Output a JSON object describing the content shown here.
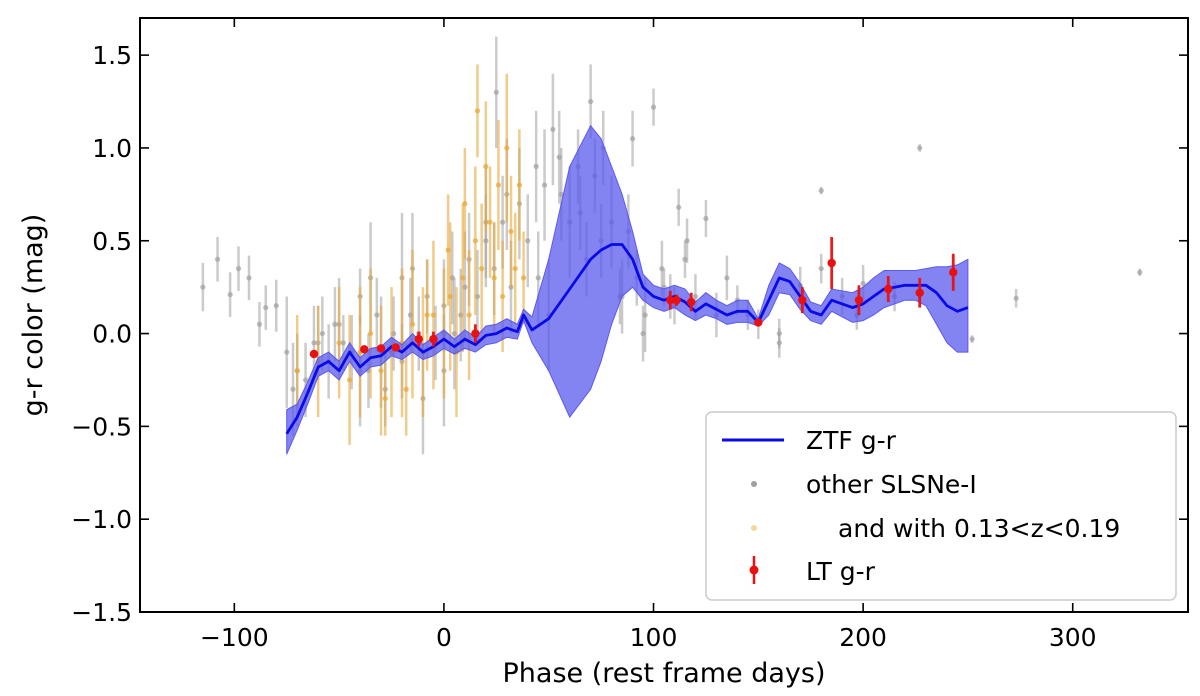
{
  "chart_data": {
    "type": "scatter",
    "xlabel": "Phase (rest frame days)",
    "ylabel": "g-r color (mag)",
    "xlim": [
      -145,
      355
    ],
    "ylim": [
      -1.5,
      1.7
    ],
    "x_ticks": [
      -100,
      0,
      100,
      200,
      300
    ],
    "y_ticks": [
      -1.5,
      -1.0,
      -0.5,
      0.0,
      0.5,
      1.0,
      1.5
    ],
    "x_tick_labels": [
      "−100",
      "0",
      "100",
      "200",
      "300"
    ],
    "y_tick_labels": [
      "−1.5",
      "−1.0",
      "−0.5",
      "0.0",
      "0.5",
      "1.0",
      "1.5"
    ],
    "grid": false,
    "legend_position": "lower-right",
    "colors": {
      "ztf_line": "#0a0ae6",
      "ztf_band": "#5a5aee",
      "other": "#a0a0a0",
      "redshift": "#e8a93a",
      "lt": "#e81010"
    },
    "series": [
      {
        "name": "ZTF g-r",
        "kind": "line-with-band",
        "x": [
          -75,
          -70,
          -65,
          -60,
          -55,
          -50,
          -45,
          -40,
          -35,
          -30,
          -25,
          -20,
          -15,
          -10,
          -5,
          0,
          5,
          10,
          15,
          20,
          25,
          30,
          35,
          38,
          42,
          50,
          60,
          70,
          75,
          80,
          85,
          90,
          95,
          100,
          105,
          110,
          115,
          120,
          125,
          130,
          135,
          140,
          145,
          150,
          155,
          160,
          165,
          170,
          175,
          180,
          185,
          190,
          195,
          200,
          205,
          210,
          215,
          220,
          225,
          230,
          235,
          240,
          245,
          250
        ],
        "y": [
          -0.54,
          -0.45,
          -0.32,
          -0.18,
          -0.15,
          -0.2,
          -0.1,
          -0.18,
          -0.13,
          -0.12,
          -0.07,
          -0.1,
          -0.05,
          -0.1,
          -0.07,
          -0.03,
          -0.07,
          -0.03,
          -0.06,
          -0.01,
          0.0,
          0.03,
          0.01,
          0.1,
          0.02,
          0.08,
          0.24,
          0.4,
          0.45,
          0.48,
          0.48,
          0.4,
          0.25,
          0.2,
          0.18,
          0.2,
          0.17,
          0.12,
          0.16,
          0.13,
          0.1,
          0.12,
          0.12,
          0.06,
          0.18,
          0.3,
          0.28,
          0.2,
          0.12,
          0.1,
          0.18,
          0.16,
          0.14,
          0.16,
          0.2,
          0.24,
          0.25,
          0.26,
          0.26,
          0.26,
          0.22,
          0.15,
          0.12,
          0.14
        ],
        "lower": [
          -0.65,
          -0.52,
          -0.38,
          -0.23,
          -0.2,
          -0.25,
          -0.15,
          -0.23,
          -0.18,
          -0.17,
          -0.12,
          -0.14,
          -0.1,
          -0.14,
          -0.12,
          -0.08,
          -0.11,
          -0.08,
          -0.1,
          -0.06,
          -0.05,
          -0.02,
          -0.03,
          0.07,
          -0.05,
          -0.2,
          -0.45,
          -0.3,
          -0.15,
          0.05,
          0.2,
          0.25,
          0.18,
          0.14,
          0.12,
          0.14,
          0.1,
          0.07,
          0.1,
          0.08,
          0.05,
          0.06,
          0.06,
          0.04,
          0.1,
          0.22,
          0.21,
          0.13,
          0.07,
          0.05,
          0.12,
          0.09,
          0.06,
          0.07,
          0.1,
          0.14,
          0.16,
          0.18,
          0.18,
          0.15,
          0.05,
          -0.05,
          -0.1,
          -0.1
        ],
        "upper": [
          -0.41,
          -0.38,
          -0.26,
          -0.13,
          -0.1,
          -0.15,
          -0.05,
          -0.13,
          -0.08,
          -0.07,
          -0.02,
          -0.06,
          0.0,
          -0.06,
          -0.02,
          0.02,
          -0.03,
          0.02,
          -0.02,
          0.04,
          0.05,
          0.08,
          0.05,
          0.13,
          0.09,
          0.4,
          0.9,
          1.12,
          1.05,
          0.9,
          0.75,
          0.55,
          0.32,
          0.26,
          0.24,
          0.26,
          0.24,
          0.17,
          0.22,
          0.18,
          0.15,
          0.18,
          0.18,
          0.08,
          0.26,
          0.38,
          0.35,
          0.27,
          0.17,
          0.15,
          0.24,
          0.23,
          0.22,
          0.25,
          0.3,
          0.34,
          0.34,
          0.34,
          0.34,
          0.35,
          0.36,
          0.36,
          0.37,
          0.4
        ]
      },
      {
        "name": "other SLSNe-I",
        "kind": "scatter-errorbar",
        "x": [
          -115,
          -108,
          -102,
          -98,
          -93,
          -88,
          -85,
          -80,
          -75,
          -72,
          -70,
          -66,
          -62,
          -58,
          -55,
          -52,
          -48,
          -44,
          -40,
          -36,
          -32,
          -28,
          -24,
          -20,
          -16,
          -12,
          -8,
          -4,
          0,
          4,
          8,
          12,
          16,
          20,
          24,
          28,
          32,
          36,
          40,
          44,
          48,
          52,
          56,
          60,
          64,
          68,
          72,
          76,
          80,
          84,
          88,
          92,
          96,
          100,
          104,
          108,
          112,
          116,
          120,
          125,
          130,
          135,
          140,
          145,
          150,
          160,
          170,
          180,
          190,
          200,
          215,
          227,
          252,
          273,
          332,
          -50,
          -40,
          -30,
          -20,
          -10,
          0,
          10,
          20,
          30,
          45,
          55,
          65,
          75,
          85,
          95,
          105,
          115,
          -60,
          -35,
          -15,
          5,
          25,
          50,
          70,
          90,
          110,
          160,
          180,
          197
        ],
        "y": [
          0.25,
          0.4,
          0.21,
          0.35,
          0.3,
          0.05,
          0.14,
          0.15,
          -0.1,
          -0.3,
          -0.2,
          -0.25,
          -0.05,
          0.0,
          -0.15,
          0.05,
          -0.05,
          -0.1,
          0.2,
          -0.2,
          0.1,
          -0.3,
          0.0,
          -0.15,
          0.1,
          0.0,
          0.2,
          -0.05,
          0.15,
          0.3,
          0.1,
          0.4,
          0.2,
          0.5,
          0.35,
          0.6,
          0.25,
          0.7,
          0.5,
          0.9,
          0.8,
          1.1,
          0.75,
          0.6,
          0.9,
          0.4,
          0.85,
          1.0,
          0.6,
          0.2,
          0.55,
          0.3,
          0.1,
          1.22,
          0.35,
          0.2,
          0.68,
          0.5,
          0.2,
          0.62,
          0.1,
          0.3,
          0.18,
          0.1,
          0.05,
          -0.05,
          0.26,
          0.77,
          0.2,
          0.27,
          0.2,
          1.0,
          -0.03,
          0.19,
          0.33,
          0.05,
          -0.2,
          -0.1,
          0.3,
          -0.35,
          -0.2,
          0.25,
          0.6,
          0.75,
          0.3,
          0.95,
          0.65,
          0.5,
          0.2,
          0.0,
          0.25,
          0.4,
          -0.05,
          0.3,
          0.35,
          0.0,
          1.3,
          0.1,
          1.25,
          1.05,
          0.15,
          0.0,
          0.35,
          0.1
        ],
        "err": [
          0.13,
          0.12,
          0.12,
          0.12,
          0.12,
          0.12,
          0.12,
          0.14,
          0.3,
          0.25,
          0.2,
          0.2,
          0.2,
          0.2,
          0.2,
          0.2,
          0.15,
          0.2,
          0.15,
          0.2,
          0.2,
          0.2,
          0.2,
          0.2,
          0.2,
          0.2,
          0.2,
          0.2,
          0.25,
          0.25,
          0.25,
          0.25,
          0.25,
          0.25,
          0.25,
          0.25,
          0.25,
          0.3,
          0.25,
          0.3,
          0.3,
          0.3,
          0.25,
          0.3,
          0.2,
          0.2,
          0.2,
          0.2,
          0.25,
          0.15,
          0.2,
          0.15,
          0.2,
          0.1,
          0.15,
          0.12,
          0.1,
          0.12,
          0.12,
          0.1,
          0.12,
          0.12,
          0.08,
          0.08,
          0.08,
          0.08,
          0.1,
          0.02,
          0.1,
          0.1,
          0.08,
          0.02,
          0.02,
          0.05,
          0.02,
          0.25,
          0.3,
          0.3,
          0.35,
          0.3,
          0.3,
          0.3,
          0.3,
          0.3,
          0.25,
          0.25,
          0.2,
          0.2,
          0.2,
          0.15,
          0.1,
          0.1,
          0.2,
          0.3,
          0.3,
          0.3,
          0.3,
          0.3,
          0.2,
          0.15,
          0.1,
          0.08,
          0.08,
          0.08
        ]
      },
      {
        "name": "and with 0.13<z<0.19",
        "kind": "scatter-errorbar",
        "x": [
          -70,
          -60,
          -50,
          -45,
          -40,
          -35,
          -30,
          -25,
          -20,
          -15,
          -10,
          -5,
          0,
          3,
          6,
          9,
          12,
          15,
          18,
          20,
          22,
          24,
          26,
          28,
          30,
          32,
          34,
          36,
          38,
          -28,
          -18,
          -8,
          2,
          10,
          16
        ],
        "y": [
          -0.2,
          -0.15,
          -0.05,
          -0.25,
          -0.1,
          0.0,
          -0.2,
          -0.1,
          -0.05,
          0.05,
          -0.1,
          0.1,
          0.0,
          0.2,
          -0.1,
          0.3,
          0.1,
          0.5,
          0.35,
          0.9,
          0.6,
          0.3,
          0.8,
          0.2,
          1.0,
          0.55,
          0.35,
          0.8,
          0.3,
          -0.35,
          -0.3,
          0.1,
          0.45,
          0.7,
          1.2
        ],
        "err": [
          0.3,
          0.3,
          0.3,
          0.35,
          0.35,
          0.35,
          0.35,
          0.35,
          0.4,
          0.4,
          0.35,
          0.4,
          0.35,
          0.4,
          0.35,
          0.4,
          0.35,
          0.4,
          0.35,
          0.35,
          0.3,
          0.3,
          0.35,
          0.3,
          0.4,
          0.3,
          0.3,
          0.3,
          0.25,
          0.2,
          0.25,
          0.3,
          0.3,
          0.3,
          0.25
        ]
      },
      {
        "name": "LT g-r",
        "kind": "scatter-errorbar",
        "x": [
          -62,
          -38,
          -30,
          -23,
          -12,
          -5,
          15,
          108,
          111,
          118,
          150,
          171,
          185,
          198,
          212,
          227,
          243
        ],
        "y": [
          -0.11,
          -0.085,
          -0.08,
          -0.075,
          -0.03,
          -0.03,
          0.0,
          0.18,
          0.18,
          0.17,
          0.06,
          0.18,
          0.38,
          0.18,
          0.24,
          0.22,
          0.33
        ],
        "err": [
          0.01,
          0.01,
          0.01,
          0.01,
          0.04,
          0.04,
          0.05,
          0.05,
          0.03,
          0.05,
          0.02,
          0.07,
          0.14,
          0.08,
          0.07,
          0.08,
          0.1
        ]
      }
    ]
  }
}
